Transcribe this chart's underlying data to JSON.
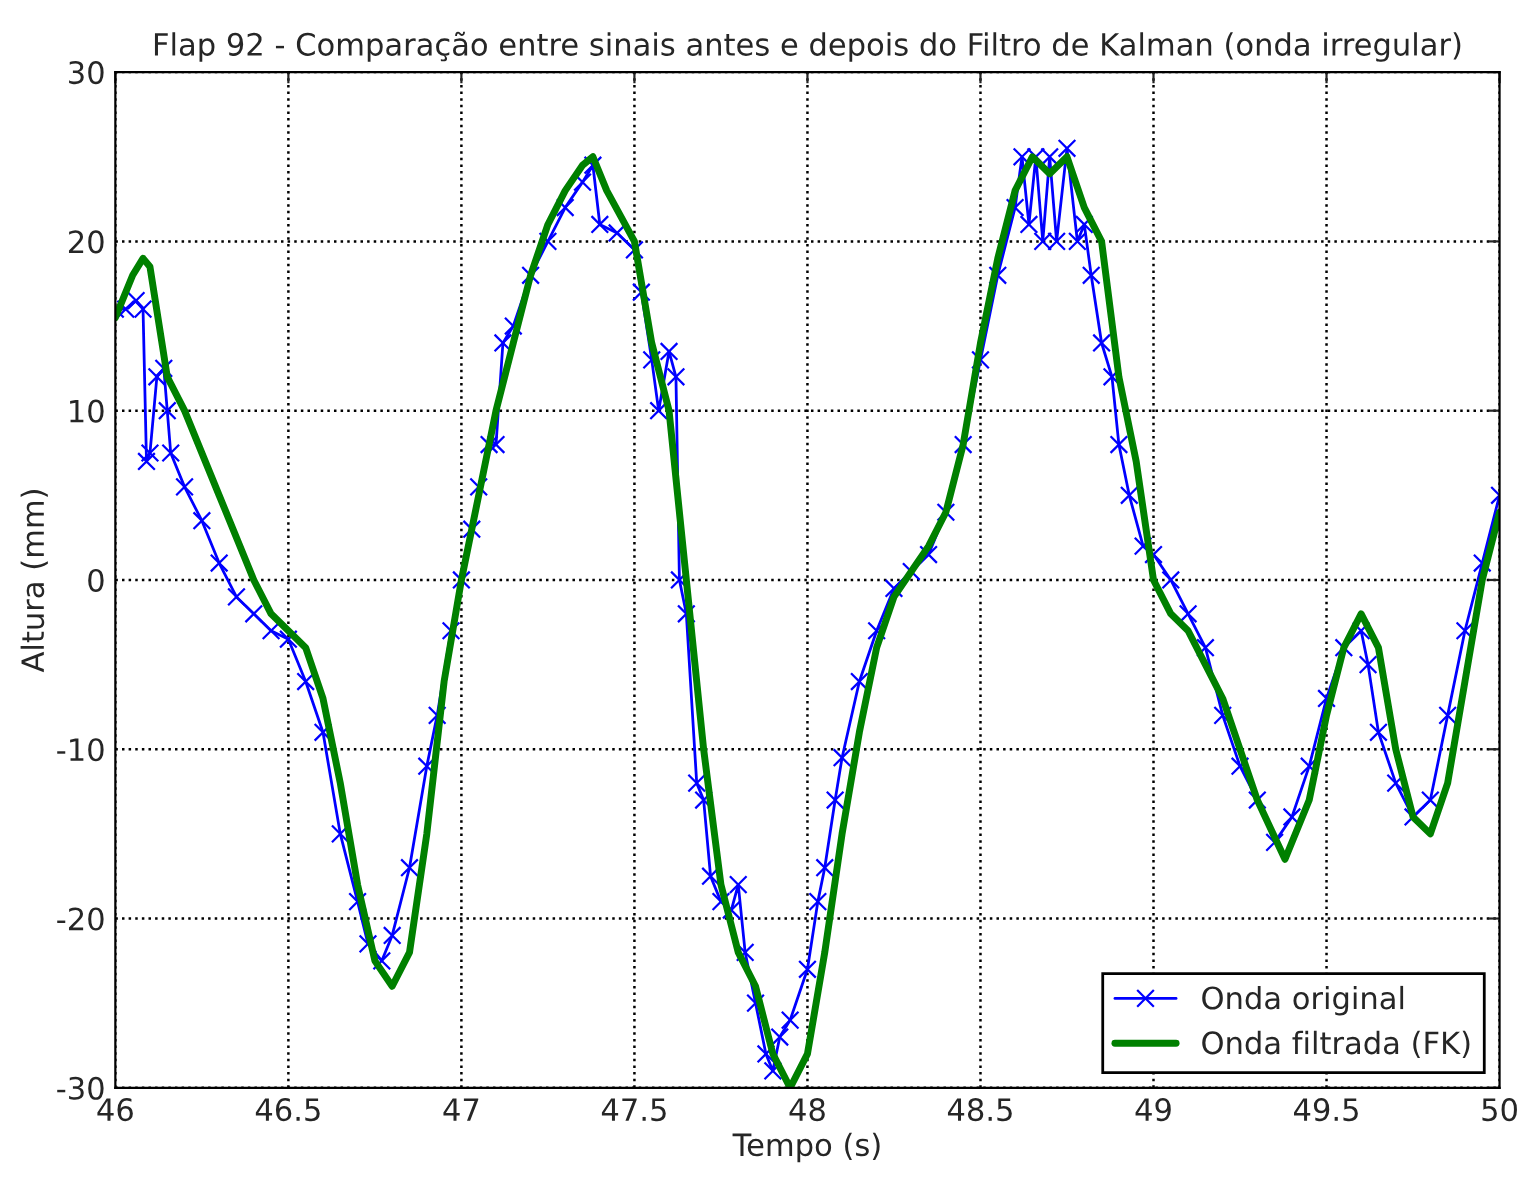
{
  "chart_data": {
    "type": "line",
    "title": "Flap 92 - Comparação entre sinais antes e depois do Filtro de Kalman (onda irregular)",
    "xlabel": "Tempo (s)",
    "ylabel": "Altura (mm)",
    "xlim": [
      46,
      50
    ],
    "xticks": [
      46,
      {
        "value": 46.5,
        "label": "46.5"
      },
      47,
      {
        "value": 47.5,
        "label": "47.5"
      },
      48,
      {
        "value": 48.5,
        "label": "48.5"
      },
      49,
      {
        "value": 49.5,
        "label": "49.5"
      },
      50
    ],
    "ylim": [
      -30,
      30
    ],
    "yticks": [
      -30,
      -20,
      -10,
      0,
      10,
      20,
      30
    ],
    "grid": true,
    "legend": "bottom right",
    "series": [
      {
        "name": "Onda original",
        "color": "#0000ff",
        "marker": "cross",
        "line_style": "solid",
        "x": [
          46.0,
          46.03,
          46.06,
          46.08,
          46.09,
          46.1,
          46.12,
          46.14,
          46.15,
          46.16,
          46.2,
          46.25,
          46.3,
          46.35,
          46.4,
          46.45,
          46.5,
          46.55,
          46.6,
          46.65,
          46.7,
          46.73,
          46.77,
          46.8,
          46.85,
          46.9,
          46.93,
          46.97,
          47.0,
          47.03,
          47.05,
          47.08,
          47.1,
          47.12,
          47.15,
          47.2,
          47.25,
          47.3,
          47.35,
          47.38,
          47.4,
          47.45,
          47.5,
          47.52,
          47.55,
          47.57,
          47.6,
          47.62,
          47.63,
          47.65,
          47.68,
          47.7,
          47.72,
          47.75,
          47.78,
          47.8,
          47.82,
          47.85,
          47.88,
          47.9,
          47.92,
          47.95,
          48.0,
          48.03,
          48.05,
          48.08,
          48.1,
          48.15,
          48.2,
          48.25,
          48.3,
          48.35,
          48.4,
          48.45,
          48.5,
          48.55,
          48.6,
          48.62,
          48.64,
          48.66,
          48.68,
          48.7,
          48.72,
          48.75,
          48.78,
          48.8,
          48.82,
          48.85,
          48.88,
          48.9,
          48.93,
          48.97,
          49.0,
          49.05,
          49.1,
          49.15,
          49.2,
          49.25,
          49.3,
          49.35,
          49.4,
          49.45,
          49.5,
          49.55,
          49.6,
          49.62,
          49.65,
          49.7,
          49.75,
          49.8,
          49.85,
          49.9,
          49.95,
          50.0
        ],
        "values": [
          16,
          16,
          16.5,
          16,
          7,
          7.5,
          12,
          12.5,
          10,
          7.5,
          5.5,
          3.5,
          1,
          -1,
          -2,
          -3,
          -3.5,
          -6,
          -9,
          -15,
          -19,
          -21.5,
          -22.5,
          -21,
          -17,
          -11,
          -8,
          -3,
          0,
          3,
          5.5,
          8,
          8,
          14,
          15,
          18,
          20,
          22,
          23.5,
          24.5,
          21,
          20.5,
          19.5,
          17,
          13,
          10,
          13.5,
          12,
          0,
          -2,
          -12,
          -13,
          -17.5,
          -19,
          -19.5,
          -18,
          -22,
          -25,
          -28,
          -29,
          -27,
          -26,
          -23,
          -19,
          -17,
          -13,
          -10.5,
          -6,
          -3,
          -0.5,
          0.5,
          1.5,
          4,
          8,
          13,
          18,
          22,
          25,
          21,
          25,
          20,
          25,
          20,
          25.5,
          20,
          21,
          18,
          14,
          12,
          8,
          5,
          2,
          1.5,
          0,
          -2,
          -4,
          -8,
          -11,
          -13,
          -15.5,
          -14,
          -11,
          -7,
          -4,
          -3,
          -5,
          -9,
          -12,
          -14,
          -13,
          -8,
          -3,
          1,
          5
        ]
      },
      {
        "name": "Onda filtrada (FK)",
        "color": "#008000",
        "marker": "none",
        "line_style": "solid",
        "x": [
          46.0,
          46.05,
          46.08,
          46.1,
          46.15,
          46.2,
          46.3,
          46.4,
          46.45,
          46.5,
          46.55,
          46.6,
          46.65,
          46.7,
          46.75,
          46.8,
          46.85,
          46.9,
          46.95,
          47.0,
          47.05,
          47.1,
          47.15,
          47.2,
          47.25,
          47.3,
          47.35,
          47.38,
          47.42,
          47.5,
          47.55,
          47.6,
          47.65,
          47.7,
          47.75,
          47.8,
          47.85,
          47.9,
          47.95,
          48.0,
          48.05,
          48.1,
          48.15,
          48.2,
          48.25,
          48.3,
          48.35,
          48.4,
          48.45,
          48.5,
          48.55,
          48.6,
          48.65,
          48.7,
          48.75,
          48.8,
          48.85,
          48.9,
          48.95,
          49.0,
          49.05,
          49.1,
          49.15,
          49.2,
          49.3,
          49.38,
          49.45,
          49.5,
          49.55,
          49.6,
          49.65,
          49.7,
          49.75,
          49.8,
          49.85,
          49.9,
          49.95,
          50.0
        ],
        "values": [
          15.5,
          18,
          19,
          18.5,
          12,
          10,
          5,
          0,
          -2,
          -3,
          -4,
          -7,
          -12,
          -18,
          -22.5,
          -24,
          -22,
          -15,
          -6,
          0,
          5,
          10,
          14,
          18,
          21,
          23,
          24.5,
          25,
          23,
          20,
          14,
          10,
          0,
          -10,
          -18,
          -22,
          -24,
          -28,
          -30,
          -28,
          -22,
          -15,
          -9,
          -4,
          -1,
          0.5,
          2,
          4,
          8,
          14,
          19,
          23,
          25,
          24,
          25,
          22,
          20,
          12,
          7,
          0,
          -2,
          -3,
          -5,
          -7,
          -13,
          -16.5,
          -13,
          -8,
          -4,
          -2,
          -4,
          -10,
          -14,
          -15,
          -12,
          -6,
          0,
          4
        ]
      }
    ]
  }
}
